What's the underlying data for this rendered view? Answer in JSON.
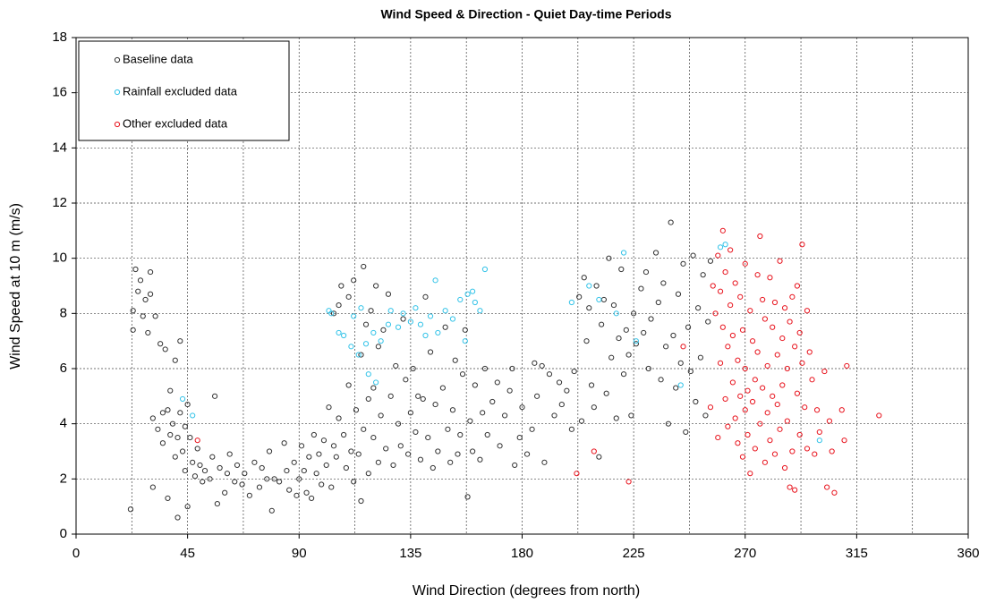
{
  "chart_data": {
    "type": "scatter",
    "title": "Wind Speed & Direction - Quiet Day-time Periods",
    "x_label": "Wind Direction (degrees from north)",
    "y_label": "Wind Speed at 10 m (m/s)",
    "xlim": [
      0,
      360
    ],
    "ylim": [
      0,
      18
    ],
    "xticks": [
      0,
      45,
      90,
      135,
      180,
      225,
      270,
      315,
      360
    ],
    "yticks": [
      0,
      2,
      4,
      6,
      8,
      10,
      12,
      14,
      16,
      18
    ],
    "x_minor_grid": [
      22.5,
      67.5,
      112.5,
      157.5,
      202.5,
      247.5,
      292.5,
      337.5
    ],
    "grid": true,
    "legend": "upper left",
    "series": [
      {
        "name": "Baseline data",
        "color": "#333333",
        "x": [
          22,
          23,
          23,
          24,
          25,
          26,
          27,
          28,
          29,
          30,
          30,
          31,
          31,
          32,
          33,
          34,
          35,
          35,
          36,
          37,
          37,
          38,
          38,
          39,
          40,
          40,
          41,
          41,
          42,
          42,
          43,
          44,
          44,
          45,
          45,
          46,
          47,
          48,
          49,
          50,
          51,
          52,
          54,
          55,
          56,
          57,
          58,
          60,
          61,
          62,
          64,
          65,
          67,
          68,
          70,
          72,
          74,
          75,
          77,
          78,
          79,
          80,
          82,
          84,
          85,
          86,
          88,
          89,
          90,
          91,
          92,
          93,
          94,
          95,
          96,
          97,
          98,
          99,
          100,
          101,
          102,
          103,
          104,
          104,
          105,
          106,
          106,
          107,
          108,
          109,
          110,
          110,
          111,
          112,
          112,
          113,
          114,
          115,
          115,
          116,
          116,
          117,
          118,
          118,
          119,
          120,
          120,
          121,
          122,
          122,
          123,
          124,
          125,
          126,
          127,
          128,
          129,
          130,
          131,
          132,
          133,
          134,
          135,
          136,
          137,
          138,
          139,
          140,
          141,
          142,
          143,
          144,
          145,
          146,
          148,
          149,
          150,
          151,
          152,
          153,
          154,
          155,
          156,
          157,
          158,
          159,
          160,
          161,
          163,
          164,
          165,
          166,
          168,
          170,
          171,
          173,
          175,
          176,
          177,
          179,
          180,
          182,
          184,
          185,
          186,
          188,
          189,
          191,
          193,
          195,
          196,
          198,
          200,
          201,
          203,
          204,
          205,
          206,
          207,
          208,
          209,
          210,
          211,
          212,
          213,
          214,
          215,
          216,
          217,
          218,
          219,
          220,
          221,
          222,
          223,
          224,
          225,
          226,
          228,
          229,
          230,
          231,
          232,
          234,
          235,
          236,
          237,
          238,
          239,
          240,
          241,
          242,
          243,
          244,
          245,
          246,
          247,
          248,
          249,
          250,
          251,
          252,
          253,
          254,
          255,
          256
        ],
        "values": [
          0.9,
          8.1,
          7.4,
          9.6,
          8.8,
          9.2,
          7.9,
          8.5,
          7.3,
          9.5,
          8.7,
          4.2,
          1.7,
          7.9,
          3.8,
          6.9,
          4.4,
          3.3,
          6.7,
          4.5,
          1.3,
          5.2,
          3.6,
          4.0,
          2.8,
          6.3,
          0.6,
          3.5,
          7.0,
          4.4,
          3.0,
          2.3,
          3.9,
          4.7,
          1.0,
          3.5,
          2.6,
          2.1,
          3.1,
          2.5,
          1.9,
          2.3,
          2.0,
          2.8,
          5.0,
          1.1,
          2.4,
          1.5,
          2.2,
          2.9,
          1.9,
          2.5,
          1.8,
          2.2,
          1.4,
          2.6,
          1.7,
          2.4,
          2.0,
          3.0,
          0.85,
          2.0,
          1.9,
          3.3,
          2.3,
          1.6,
          2.6,
          1.4,
          2.0,
          3.2,
          2.3,
          1.5,
          2.8,
          1.3,
          3.6,
          2.2,
          2.9,
          1.8,
          3.4,
          2.5,
          4.6,
          1.7,
          3.2,
          8.0,
          2.8,
          4.2,
          8.3,
          9.0,
          3.6,
          2.4,
          8.6,
          5.4,
          3.0,
          9.2,
          1.9,
          4.5,
          2.9,
          6.5,
          1.2,
          9.7,
          3.8,
          7.6,
          4.9,
          2.2,
          8.1,
          3.5,
          5.3,
          9.0,
          6.8,
          2.6,
          4.3,
          7.4,
          3.1,
          8.7,
          5.0,
          2.5,
          6.1,
          4.0,
          3.2,
          7.8,
          5.6,
          2.9,
          4.4,
          6.0,
          3.7,
          5.0,
          2.7,
          4.9,
          8.6,
          3.5,
          6.6,
          2.4,
          4.7,
          3.0,
          5.3,
          7.5,
          3.8,
          2.6,
          4.5,
          6.3,
          2.9,
          3.6,
          5.8,
          7.4,
          1.35,
          4.1,
          3.0,
          5.4,
          2.7,
          4.4,
          6.0,
          3.6,
          4.8,
          5.5,
          3.2,
          4.3,
          5.2,
          6.0,
          2.5,
          3.5,
          4.6,
          2.9,
          3.8,
          6.2,
          5.0,
          6.1,
          2.6,
          5.8,
          4.3,
          5.5,
          4.7,
          5.2,
          3.8,
          5.9,
          8.6,
          4.1,
          9.3,
          7.0,
          8.2,
          5.4,
          4.6,
          9.0,
          2.8,
          7.6,
          8.5,
          5.1,
          10.0,
          6.4,
          8.3,
          4.2,
          7.1,
          9.6,
          5.8,
          7.4,
          6.5,
          4.3,
          8.0,
          6.9,
          8.9,
          7.3,
          9.5,
          6.0,
          7.8,
          10.2,
          8.4,
          5.6,
          9.1,
          6.8,
          4.0,
          11.3,
          7.2,
          5.3,
          8.7,
          6.2,
          9.8,
          3.7,
          7.5,
          5.9,
          10.1,
          4.8,
          8.2,
          6.4,
          9.4,
          4.3,
          7.7,
          9.9
        ]
      },
      {
        "name": "Rainfall excluded data",
        "color": "#33c3e8",
        "x": [
          102,
          103,
          106,
          108,
          111,
          112,
          114,
          115,
          117,
          118,
          120,
          121,
          123,
          126,
          127,
          130,
          132,
          135,
          137,
          139,
          141,
          143,
          145,
          146,
          149,
          152,
          155,
          157,
          158,
          160,
          161,
          163,
          165,
          43,
          47,
          200,
          207,
          211,
          218,
          221,
          226,
          244,
          260,
          262,
          300
        ],
        "values": [
          8.1,
          8.0,
          7.3,
          7.2,
          6.8,
          7.9,
          6.5,
          8.2,
          6.9,
          5.8,
          7.3,
          5.5,
          7.0,
          7.6,
          8.1,
          7.5,
          8.0,
          7.7,
          8.2,
          7.6,
          7.2,
          7.9,
          9.2,
          7.3,
          8.1,
          7.8,
          8.5,
          7.0,
          8.7,
          8.8,
          8.4,
          8.1,
          9.6,
          4.9,
          4.3,
          8.4,
          9.0,
          8.5,
          8.0,
          10.2,
          7.0,
          5.4,
          10.4,
          10.5,
          3.4
        ]
      },
      {
        "name": "Other excluded data",
        "color": "#e8141e",
        "x": [
          49,
          202,
          209,
          223,
          245,
          256,
          257,
          258,
          259,
          259,
          260,
          260,
          261,
          261,
          262,
          262,
          263,
          263,
          264,
          264,
          265,
          265,
          266,
          266,
          267,
          267,
          268,
          268,
          269,
          269,
          270,
          270,
          270,
          271,
          271,
          272,
          272,
          273,
          273,
          274,
          274,
          275,
          275,
          276,
          276,
          277,
          277,
          278,
          278,
          279,
          279,
          280,
          280,
          281,
          281,
          282,
          282,
          283,
          283,
          284,
          284,
          285,
          285,
          286,
          286,
          287,
          287,
          288,
          288,
          289,
          289,
          290,
          290,
          291,
          291,
          292,
          292,
          293,
          293,
          294,
          295,
          295,
          296,
          297,
          298,
          299,
          300,
          302,
          303,
          304,
          305,
          306,
          309,
          310,
          311,
          324
        ],
        "values": [
          3.4,
          2.2,
          3.0,
          1.9,
          6.8,
          4.6,
          9.0,
          8.0,
          3.5,
          10.1,
          6.2,
          8.8,
          7.5,
          11.0,
          4.9,
          9.5,
          6.8,
          3.9,
          8.3,
          10.3,
          5.5,
          7.2,
          4.2,
          9.1,
          6.3,
          3.3,
          8.6,
          5.0,
          7.4,
          2.8,
          9.8,
          4.5,
          6.0,
          5.2,
          3.6,
          8.1,
          2.2,
          4.8,
          7.0,
          5.6,
          3.1,
          6.6,
          9.4,
          4.0,
          10.8,
          8.5,
          5.3,
          2.6,
          7.8,
          4.4,
          6.1,
          9.3,
          3.4,
          5.0,
          7.5,
          2.9,
          8.4,
          4.7,
          6.5,
          3.8,
          9.9,
          7.1,
          5.4,
          8.2,
          2.4,
          6.0,
          4.1,
          7.7,
          1.7,
          3.0,
          8.6,
          6.8,
          1.6,
          5.1,
          9.0,
          7.3,
          3.6,
          10.5,
          6.2,
          4.6,
          8.1,
          3.1,
          6.6,
          5.6,
          2.9,
          4.5,
          3.7,
          5.9,
          1.7,
          4.1,
          3.0,
          1.5,
          4.5,
          3.4,
          6.1,
          4.3
        ]
      }
    ]
  }
}
